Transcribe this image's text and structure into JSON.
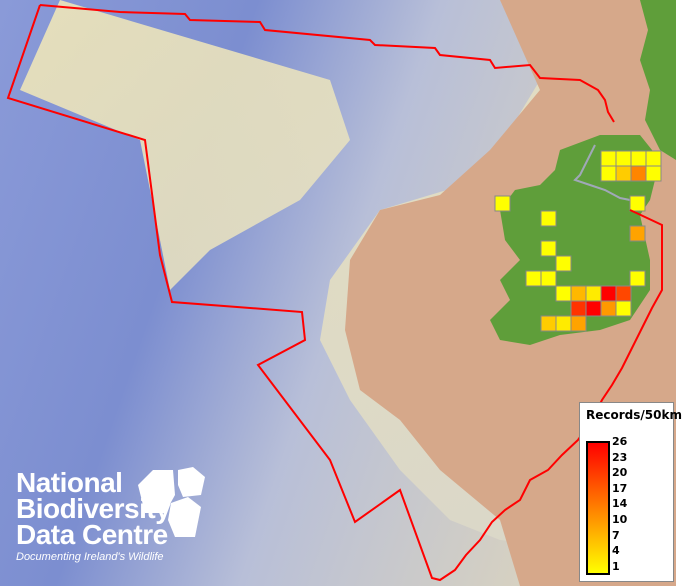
{
  "legend": {
    "title": "Records/50km",
    "ticks": [
      "26",
      "23",
      "20",
      "17",
      "14",
      "10",
      "7",
      "4",
      "1"
    ],
    "color_low": "#ffff00",
    "color_mid": "#ff8000",
    "color_high": "#ff0000"
  },
  "logo": {
    "line1": "National",
    "line2": "Biodiversity",
    "line3": "Data Centre",
    "tagline": "Documenting Ireland's Wildlife"
  },
  "records": [
    1,
    1,
    1,
    1,
    1,
    6,
    13,
    1,
    1,
    1,
    1,
    10,
    1,
    1,
    1,
    1,
    1,
    1,
    8,
    3,
    26,
    19,
    21,
    26,
    11,
    1,
    6,
    3,
    10
  ],
  "colors": {
    "boundary": "#ff0000",
    "land": "#5f9e3a",
    "sea_deep": "#7b8fd0",
    "shelf": "#e6dcb0",
    "terrain": "#d4a888",
    "grid_border": "#888888"
  }
}
